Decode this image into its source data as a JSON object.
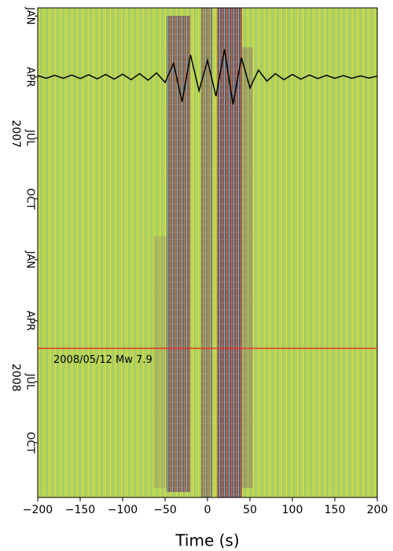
{
  "chart_data": {
    "type": "correlogram",
    "xlabel": "Time (s)",
    "xlim": [
      -200,
      200
    ],
    "xticks": [
      {
        "value": -200,
        "label": "−200"
      },
      {
        "value": -150,
        "label": "−150"
      },
      {
        "value": -100,
        "label": "−100"
      },
      {
        "value": -50,
        "label": "−50"
      },
      0,
      50,
      100,
      150,
      200
    ],
    "ylim": [
      -0.4,
      23.7
    ],
    "yticks": [
      {
        "value": 0,
        "label": "JAN"
      },
      {
        "value": 3,
        "label": "APR"
      },
      {
        "value": 6,
        "label": "JUL"
      },
      {
        "value": 9,
        "label": "OCT"
      },
      {
        "value": 12,
        "label": "JAN"
      },
      {
        "value": 15,
        "label": "APR"
      },
      {
        "value": 18,
        "label": "JUL"
      },
      {
        "value": 21,
        "label": "OCT"
      }
    ],
    "year_ticks": [
      {
        "value": 5.8,
        "label": "2007"
      },
      {
        "value": 17.8,
        "label": "2008"
      }
    ],
    "event": {
      "value": 16.36,
      "label": "2008/05/12 Mw 7.9",
      "color": "#e8322a"
    },
    "stack": {
      "at": 3,
      "color": "#000000",
      "x": [
        -200,
        -190,
        -180,
        -170,
        -160,
        -150,
        -140,
        -130,
        -120,
        -110,
        -100,
        -90,
        -80,
        -70,
        -60,
        -50,
        -40,
        -30,
        -20,
        -10,
        0,
        10,
        20,
        30,
        40,
        50,
        60,
        70,
        80,
        90,
        100,
        110,
        120,
        130,
        140,
        150,
        160,
        170,
        180,
        190,
        200
      ],
      "values": [
        0.05,
        -0.05,
        0.06,
        -0.05,
        0.07,
        -0.06,
        0.08,
        -0.07,
        0.09,
        -0.08,
        0.1,
        -0.1,
        0.12,
        -0.12,
        0.15,
        -0.2,
        0.5,
        -0.9,
        0.8,
        -0.5,
        0.6,
        -0.7,
        1.0,
        -1.0,
        0.7,
        -0.4,
        0.25,
        -0.15,
        0.12,
        -0.1,
        0.09,
        -0.08,
        0.07,
        -0.06,
        0.06,
        -0.05,
        0.05,
        -0.05,
        0.04,
        -0.04,
        0.03
      ]
    }
  }
}
